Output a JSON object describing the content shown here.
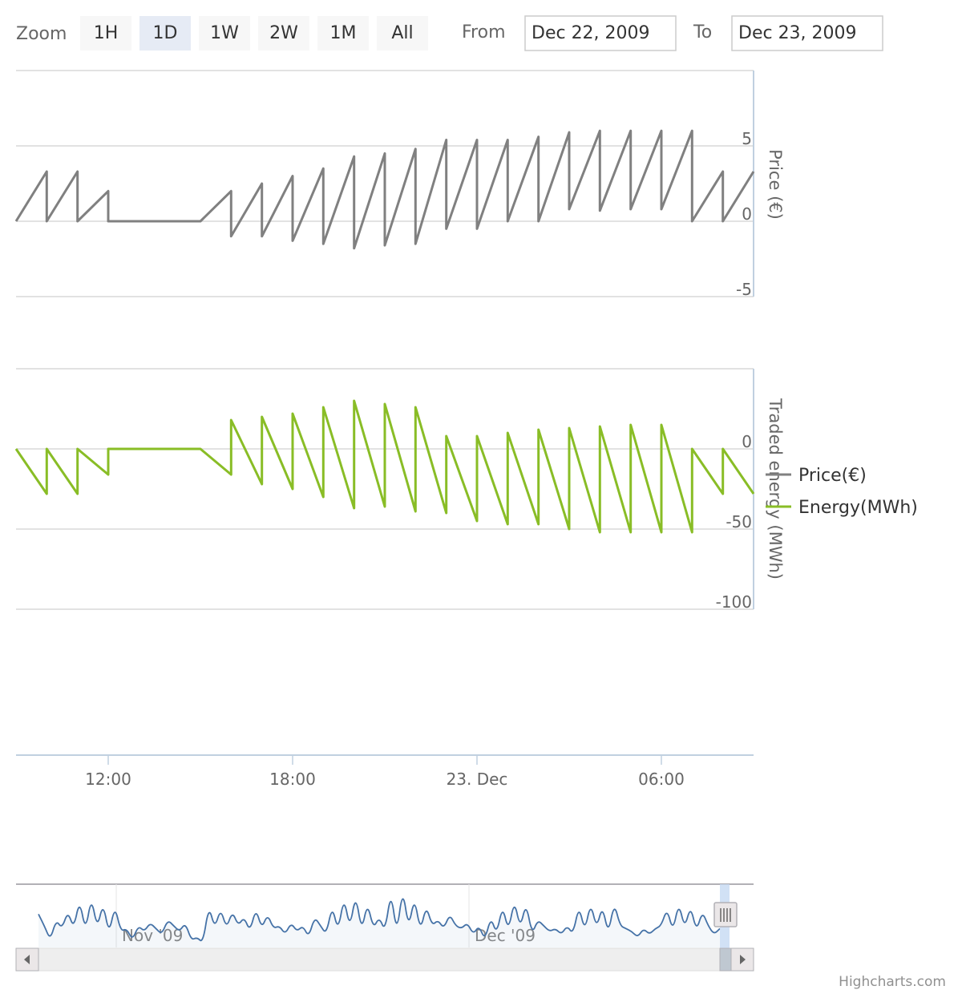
{
  "range_selector": {
    "zoom_label": "Zoom",
    "buttons": [
      {
        "label": "1H",
        "selected": false
      },
      {
        "label": "1D",
        "selected": true
      },
      {
        "label": "1W",
        "selected": false
      },
      {
        "label": "2W",
        "selected": false
      },
      {
        "label": "1M",
        "selected": false
      },
      {
        "label": "All",
        "selected": false
      }
    ],
    "from_label": "From",
    "from_value": "Dec 22, 2009",
    "to_label": "To",
    "to_value": "Dec 23, 2009"
  },
  "colors": {
    "price": "#808080",
    "energy": "#89bd26",
    "navigator": "#4572a7",
    "grid": "#d8d8d8",
    "button_bg": "#f7f7f7",
    "button_selected_bg": "#e6ebf5"
  },
  "chart_data": [
    {
      "type": "line",
      "name": "price-panel",
      "ylabel": "Price (€)",
      "ylim": [
        -5,
        10
      ],
      "yticks": [
        5,
        0,
        -5
      ],
      "series": [
        {
          "name": "Price(€)",
          "x_hours": [
            9,
            10,
            10,
            11,
            11,
            12,
            12,
            15,
            16,
            16,
            17,
            17,
            18,
            18,
            19,
            19,
            20,
            20,
            21,
            21,
            22,
            22,
            23,
            23,
            24,
            24,
            25,
            25,
            26,
            26,
            27,
            27,
            28,
            28,
            29,
            29,
            30,
            30,
            31,
            31,
            32,
            32,
            33
          ],
          "values": [
            0,
            3.3,
            0,
            3.3,
            0,
            2,
            0,
            0,
            2,
            -1,
            2.5,
            -1,
            3,
            -1.3,
            3.5,
            -1.5,
            4.3,
            -1.8,
            4.5,
            -1.6,
            4.8,
            -1.5,
            5.4,
            -0.5,
            5.4,
            -0.5,
            5.4,
            0,
            5.6,
            0,
            5.9,
            0.8,
            6,
            0.7,
            6,
            0.8,
            6,
            0.8,
            6,
            0,
            3.3,
            0,
            3.3
          ]
        }
      ]
    },
    {
      "type": "line",
      "name": "energy-panel",
      "ylabel": "Traded energy (MWh)",
      "ylim": [
        -100,
        50
      ],
      "yticks": [
        0,
        -50,
        -100
      ],
      "series": [
        {
          "name": "Energy(MWh)",
          "x_hours": [
            9,
            10,
            10,
            11,
            11,
            12,
            12,
            15,
            16,
            16,
            17,
            17,
            18,
            18,
            19,
            19,
            20,
            20,
            21,
            21,
            22,
            22,
            23,
            23,
            24,
            24,
            25,
            25,
            26,
            26,
            27,
            27,
            28,
            28,
            29,
            29,
            30,
            30,
            31,
            31,
            32,
            32,
            33
          ],
          "values": [
            0,
            -28,
            0,
            -28,
            0,
            -16,
            0,
            0,
            -16,
            18,
            -22,
            20,
            -25,
            22,
            -30,
            26,
            -37,
            30,
            -36,
            28,
            -39,
            26,
            -40,
            8,
            -45,
            8,
            -47,
            10,
            -47,
            12,
            -50,
            13,
            -52,
            14,
            -52,
            15,
            -52,
            15,
            -52,
            0,
            -28,
            0,
            -28
          ]
        }
      ]
    }
  ],
  "x_axis": {
    "ticks": [
      {
        "label": "12:00",
        "hour": 12
      },
      {
        "label": "18:00",
        "hour": 18
      },
      {
        "label": "23. Dec",
        "hour": 24
      },
      {
        "label": "06:00",
        "hour": 30
      }
    ]
  },
  "legend": {
    "items": [
      {
        "label": "Price(€)",
        "color": "#808080"
      },
      {
        "label": "Energy(MWh)",
        "color": "#89bd26"
      }
    ]
  },
  "navigator": {
    "labels": [
      "Nov '09",
      "Dec '09"
    ],
    "series_values": [
      0.55,
      0.35,
      0.1,
      0.45,
      0.3,
      0.6,
      0.3,
      0.8,
      0.25,
      0.85,
      0.3,
      0.75,
      0.2,
      0.7,
      0.25,
      0.3,
      0.1,
      0.35,
      0.25,
      0.4,
      0.3,
      0.2,
      0.45,
      0.35,
      0.25,
      0.4,
      0.1,
      0.15,
      0.05,
      0.7,
      0.3,
      0.65,
      0.3,
      0.6,
      0.35,
      0.5,
      0.25,
      0.65,
      0.3,
      0.55,
      0.3,
      0.35,
      0.2,
      0.4,
      0.25,
      0.35,
      0.15,
      0.5,
      0.35,
      0.2,
      0.7,
      0.25,
      0.85,
      0.3,
      0.9,
      0.25,
      0.75,
      0.3,
      0.5,
      0.25,
      0.95,
      0.2,
      1.0,
      0.3,
      0.85,
      0.25,
      0.7,
      0.35,
      0.45,
      0.3,
      0.55,
      0.35,
      0.3,
      0.4,
      0.2,
      0.35,
      0.1,
      0.5,
      0.2,
      0.7,
      0.25,
      0.8,
      0.3,
      0.75,
      0.2,
      0.45,
      0.35,
      0.25,
      0.3,
      0.2,
      0.35,
      0.2,
      0.7,
      0.25,
      0.75,
      0.3,
      0.7,
      0.2,
      0.75,
      0.35,
      0.3,
      0.25,
      0.15,
      0.3,
      0.2,
      0.3,
      0.35,
      0.65,
      0.25,
      0.75,
      0.3,
      0.7,
      0.25,
      0.6,
      0.35,
      0.2,
      0.3
    ]
  },
  "credits": "Highcharts.com"
}
